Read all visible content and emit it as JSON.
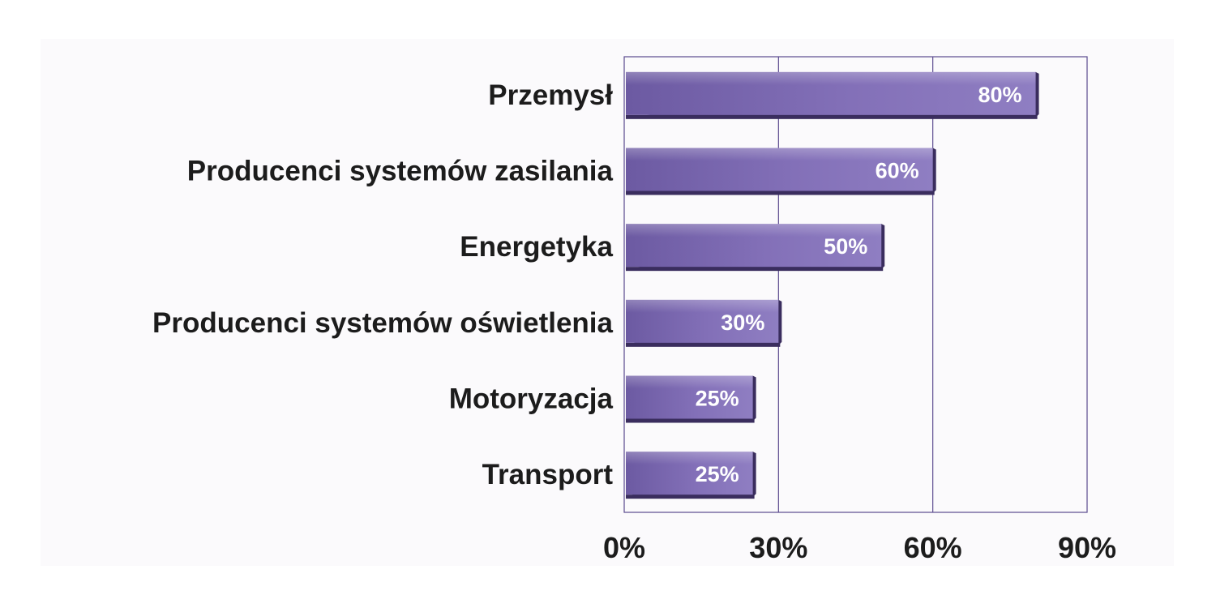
{
  "chart_data": {
    "type": "bar",
    "orientation": "horizontal",
    "categories": [
      "Przemysł",
      "Producenci systemów zasilania",
      "Energetyka",
      "Producenci systemów oświetlenia",
      "Motoryzacja",
      "Transport"
    ],
    "values": [
      80,
      60,
      50,
      30,
      25,
      25
    ],
    "value_labels": [
      "80%",
      "60%",
      "50%",
      "30%",
      "25%",
      "25%"
    ],
    "xlim": [
      0,
      90
    ],
    "x_ticks": [
      0,
      30,
      60,
      90
    ],
    "x_tick_labels": [
      "0%",
      "30%",
      "60%",
      "90%"
    ],
    "grid": "vertical",
    "bar_color": "#7a68b0",
    "bar_color_dark": "#3a2d5e",
    "grid_color": "#5b4a8e"
  }
}
